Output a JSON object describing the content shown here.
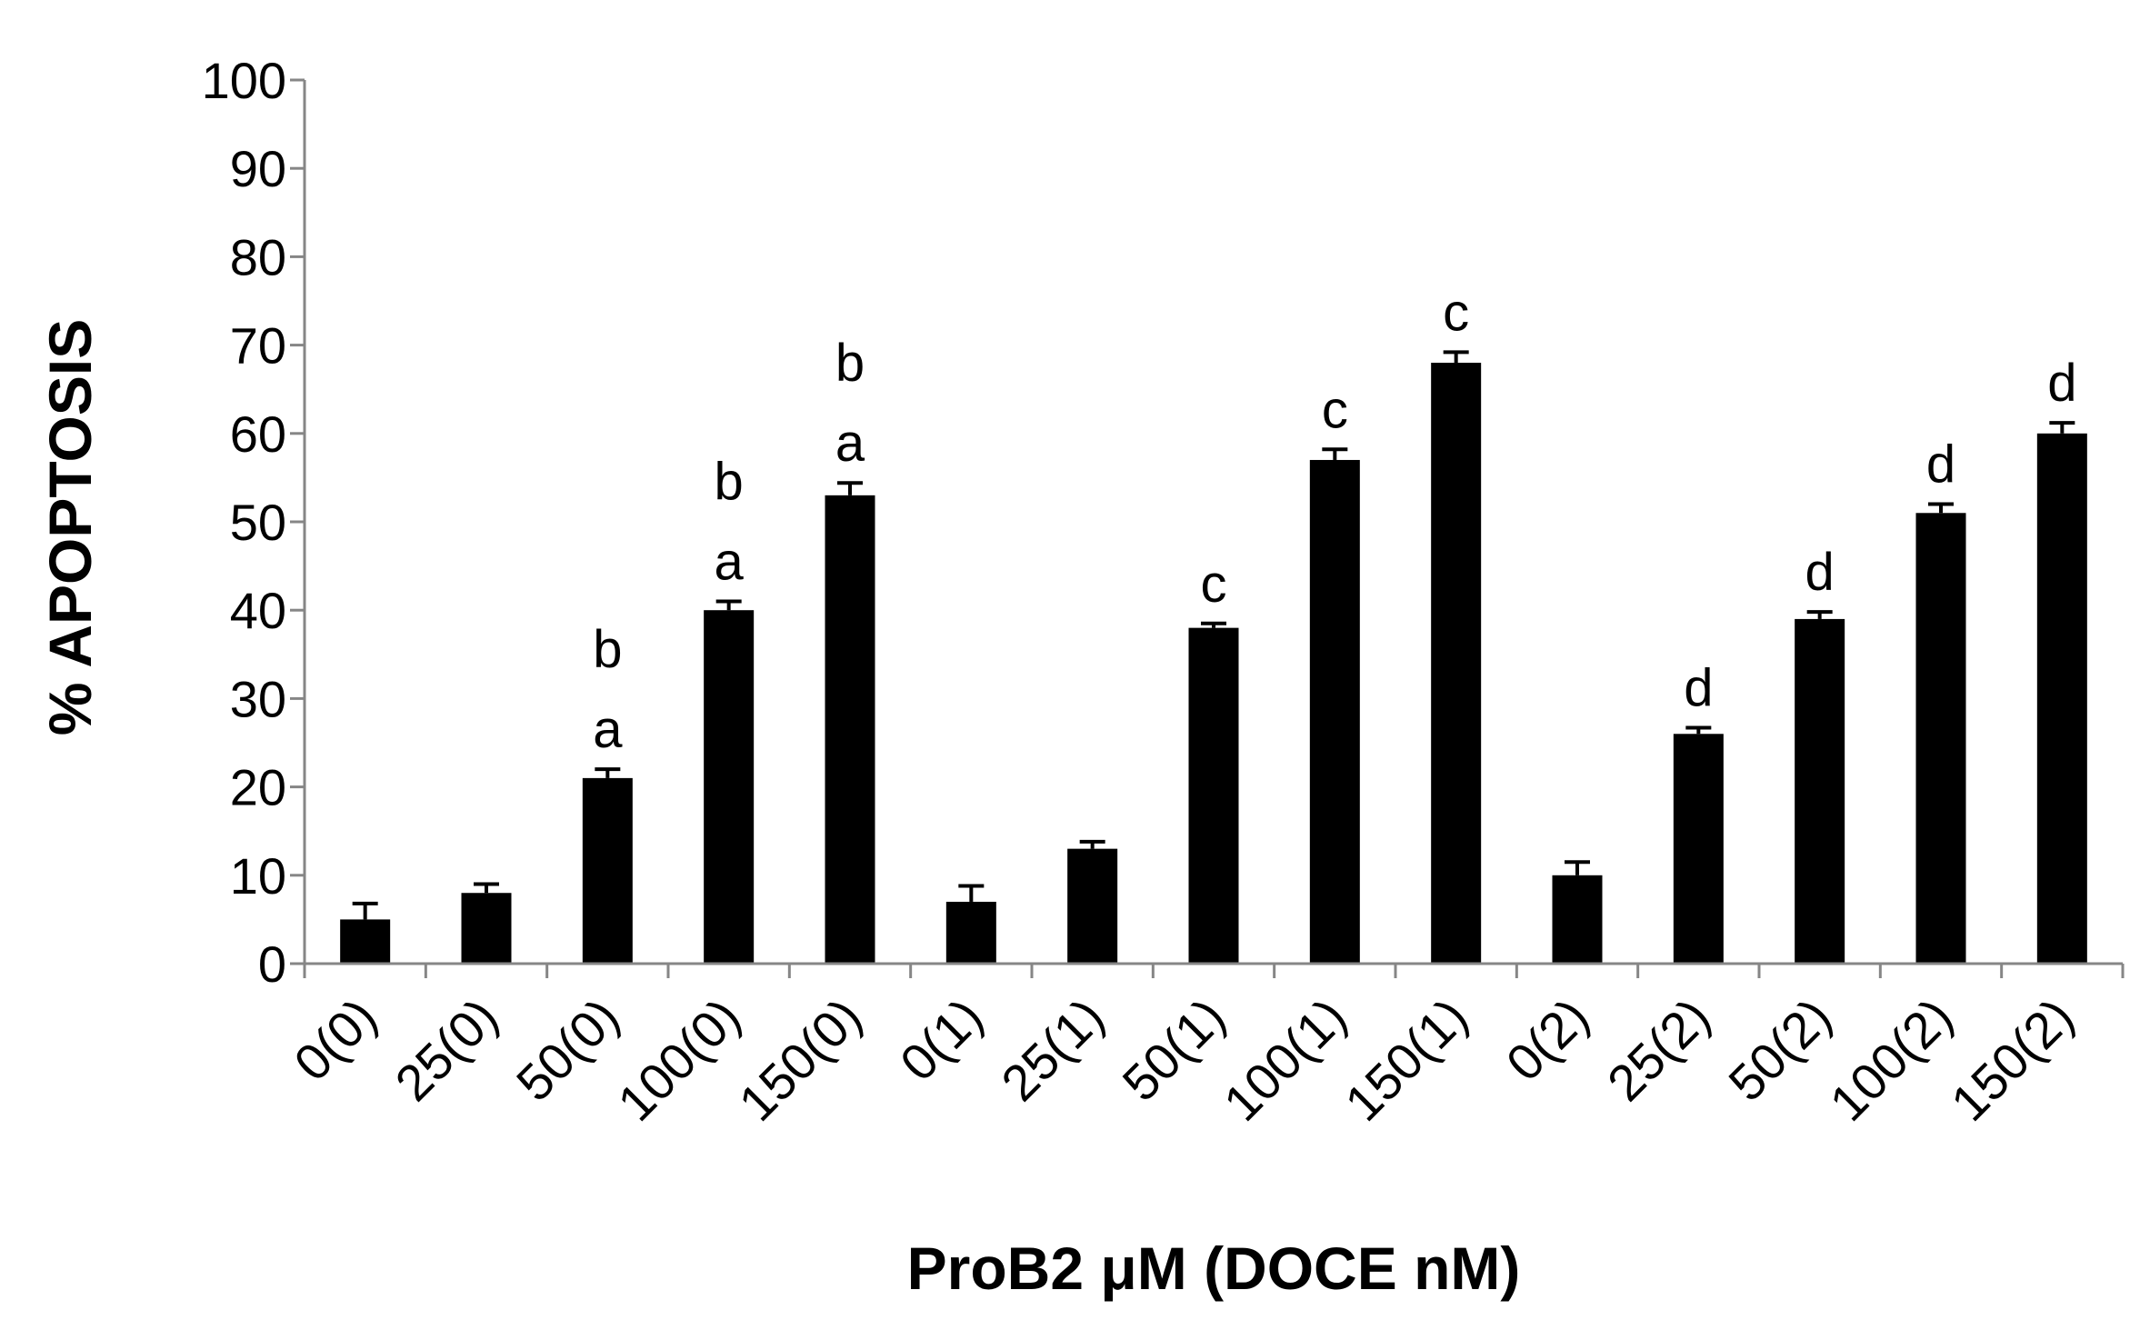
{
  "chart_data": {
    "type": "bar",
    "title": "",
    "xlabel": "ProB2 μM (DOCE nM)",
    "ylabel": "% APOPTOSIS",
    "ylim": [
      0,
      100
    ],
    "yticks": [
      0,
      10,
      20,
      30,
      40,
      50,
      60,
      70,
      80,
      90,
      100
    ],
    "grid": false,
    "legend": "none",
    "bar_color": "#000000",
    "axis_color": "#868686",
    "categories": [
      "0(0)",
      "25(0)",
      "50(0)",
      "100(0)",
      "150(0)",
      "0(1)",
      "25(1)",
      "50(1)",
      "100(1)",
      "150(1)",
      "0(2)",
      "25(2)",
      "50(2)",
      "100(2)",
      "150(2)"
    ],
    "values": [
      5,
      8,
      21,
      40,
      53,
      7,
      13,
      38,
      57,
      68,
      10,
      26,
      39,
      51,
      60
    ],
    "errors": [
      1.8,
      1.0,
      1.0,
      1.0,
      1.4,
      1.8,
      0.8,
      0.5,
      1.2,
      1.2,
      1.5,
      0.7,
      0.8,
      1.0,
      1.2
    ],
    "annotations": [
      [],
      [],
      [
        "a",
        "b"
      ],
      [
        "a",
        "b"
      ],
      [
        "a",
        "b"
      ],
      [],
      [],
      [
        "c"
      ],
      [
        "c"
      ],
      [
        "c"
      ],
      [],
      [
        "d"
      ],
      [
        "d"
      ],
      [
        "d"
      ],
      [
        "d"
      ]
    ]
  }
}
